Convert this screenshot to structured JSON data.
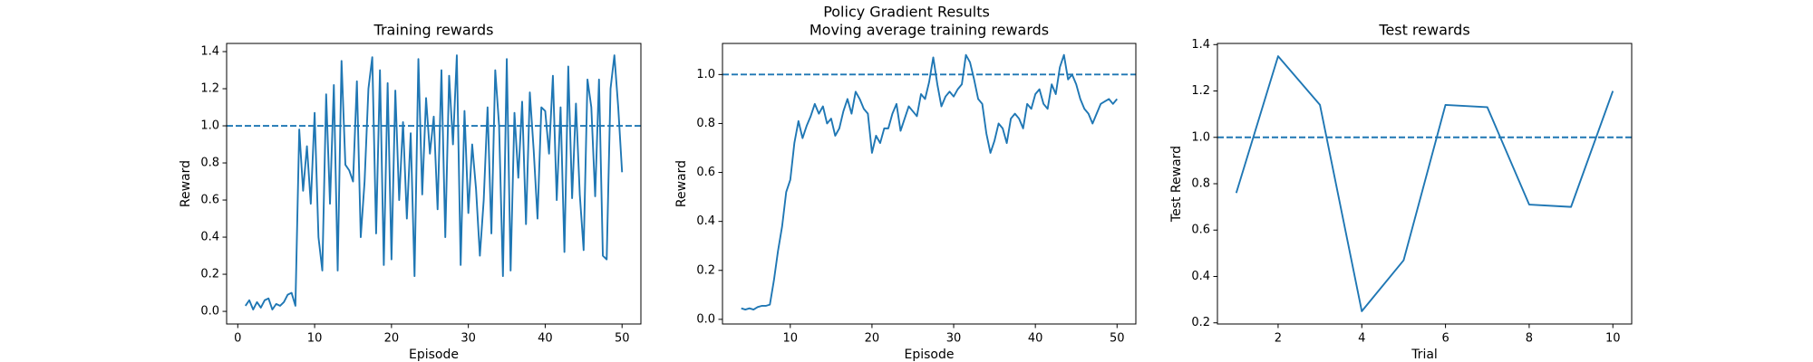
{
  "title": "Policy Gradient Results",
  "chart_data": [
    {
      "type": "line",
      "title": "Training rewards",
      "x_label": "Episode",
      "y_label": "Reward",
      "x": [
        1,
        1.5,
        2,
        2.5,
        3,
        3.5,
        4,
        4.5,
        5,
        5.5,
        6,
        6.5,
        7,
        7.5,
        8,
        8.5,
        9,
        9.5,
        10,
        10.5,
        11,
        11.5,
        12,
        12.5,
        13,
        13.5,
        14,
        14.5,
        15,
        15.5,
        16,
        16.5,
        17,
        17.5,
        18,
        18.5,
        19,
        19.5,
        20,
        20.5,
        21,
        21.5,
        22,
        22.5,
        23,
        23.5,
        24,
        24.5,
        25,
        25.5,
        26,
        26.5,
        27,
        27.5,
        28,
        28.5,
        29,
        29.5,
        30,
        30.5,
        31,
        31.5,
        32,
        32.5,
        33,
        33.5,
        34,
        34.5,
        35,
        35.5,
        36,
        36.5,
        37,
        37.5,
        38,
        38.5,
        39,
        39.5,
        40,
        40.5,
        41,
        41.5,
        42,
        42.5,
        43,
        43.5,
        44,
        44.5,
        45,
        45.5,
        46,
        46.5,
        47,
        47.5,
        48,
        48.5,
        49,
        49.5,
        50
      ],
      "series": [
        {
          "color": "#1f77b4",
          "values": [
            0.03,
            0.06,
            0.01,
            0.05,
            0.02,
            0.06,
            0.07,
            0.01,
            0.04,
            0.03,
            0.05,
            0.09,
            0.1,
            0.03,
            0.98,
            0.65,
            0.89,
            0.58,
            1.07,
            0.4,
            0.22,
            1.17,
            0.58,
            1.22,
            0.22,
            1.35,
            0.79,
            0.76,
            0.7,
            1.24,
            0.4,
            0.7,
            1.2,
            1.37,
            0.42,
            1.3,
            0.25,
            1.23,
            0.28,
            1.19,
            0.6,
            1.02,
            0.5,
            0.96,
            0.19,
            1.36,
            0.63,
            1.15,
            0.85,
            1.05,
            0.55,
            1.3,
            0.4,
            1.27,
            0.9,
            1.38,
            0.25,
            1.08,
            0.53,
            0.9,
            0.66,
            0.3,
            0.6,
            1.1,
            0.42,
            1.3,
            1.0,
            0.19,
            1.36,
            0.22,
            1.07,
            0.72,
            1.13,
            0.47,
            1.18,
            0.87,
            0.5,
            1.1,
            1.08,
            0.85,
            1.27,
            0.6,
            1.1,
            0.32,
            1.32,
            0.61,
            1.12,
            0.63,
            0.33,
            1.25,
            1.1,
            0.62,
            1.25,
            0.3,
            0.28,
            1.2,
            1.38,
            1.1,
            0.75
          ]
        }
      ],
      "hline": 1.0,
      "xlim": [
        -1.45,
        52.45
      ],
      "xticks": [
        0,
        10,
        20,
        30,
        40,
        50
      ],
      "ylim": [
        -0.068,
        1.444
      ],
      "yticks": [
        {
          "value": 0,
          "label": "0.0"
        },
        0.2,
        0.4,
        0.6,
        0.8,
        {
          "value": 1,
          "label": "1.0"
        },
        1.2,
        1.4
      ]
    },
    {
      "type": "line",
      "title": "Moving average training rewards",
      "x_label": "Episode",
      "y_label": "Reward",
      "x": [
        4,
        4.5,
        5,
        5.5,
        6,
        6.5,
        7,
        7.5,
        8,
        8.5,
        9,
        9.5,
        10,
        10.5,
        11,
        11.5,
        12,
        12.5,
        13,
        13.5,
        14,
        14.5,
        15,
        15.5,
        16,
        16.5,
        17,
        17.5,
        18,
        18.5,
        19,
        19.5,
        20,
        20.5,
        21,
        21.5,
        22,
        22.5,
        23,
        23.5,
        24,
        24.5,
        25,
        25.5,
        26,
        26.5,
        27,
        27.5,
        28,
        28.5,
        29,
        29.5,
        30,
        30.5,
        31,
        31.5,
        32,
        32.5,
        33,
        33.5,
        34,
        34.5,
        35,
        35.5,
        36,
        36.5,
        37,
        37.5,
        38,
        38.5,
        39,
        39.5,
        40,
        40.5,
        41,
        41.5,
        42,
        42.5,
        43,
        43.5,
        44,
        44.5,
        45,
        45.5,
        46,
        46.5,
        47,
        47.5,
        48,
        48.5,
        49,
        49.5,
        50
      ],
      "series": [
        {
          "color": "#1f77b4",
          "values": [
            0.045,
            0.04,
            0.045,
            0.04,
            0.05,
            0.055,
            0.055,
            0.06,
            0.16,
            0.28,
            0.38,
            0.52,
            0.57,
            0.72,
            0.81,
            0.74,
            0.79,
            0.83,
            0.88,
            0.84,
            0.87,
            0.8,
            0.82,
            0.75,
            0.78,
            0.85,
            0.9,
            0.84,
            0.93,
            0.9,
            0.86,
            0.84,
            0.68,
            0.75,
            0.72,
            0.78,
            0.78,
            0.84,
            0.88,
            0.77,
            0.82,
            0.87,
            0.85,
            0.83,
            0.92,
            0.9,
            0.97,
            1.07,
            0.96,
            0.87,
            0.91,
            0.93,
            0.91,
            0.94,
            0.96,
            1.08,
            1.05,
            0.98,
            0.9,
            0.88,
            0.76,
            0.68,
            0.73,
            0.8,
            0.78,
            0.72,
            0.82,
            0.84,
            0.82,
            0.78,
            0.88,
            0.86,
            0.92,
            0.94,
            0.88,
            0.86,
            0.96,
            0.92,
            1.03,
            1.08,
            0.98,
            1.0,
            0.96,
            0.9,
            0.86,
            0.84,
            0.8,
            0.84,
            0.88,
            0.89,
            0.9,
            0.88,
            0.9
          ]
        }
      ],
      "hline": 1.0,
      "xlim": [
        1.7,
        52.3
      ],
      "xticks": [
        10,
        20,
        30,
        40,
        50
      ],
      "ylim": [
        -0.019,
        1.127
      ],
      "yticks": [
        {
          "value": 0,
          "label": "0.0"
        },
        0.2,
        0.4,
        0.6,
        0.8,
        {
          "value": 1,
          "label": "1.0"
        }
      ]
    },
    {
      "type": "line",
      "title": "Test rewards",
      "x_label": "Trial",
      "y_label": "Test Reward",
      "x": [
        1,
        2,
        3,
        4,
        5,
        6,
        7,
        8,
        9,
        10
      ],
      "series": [
        {
          "color": "#1f77b4",
          "values": [
            0.76,
            1.35,
            1.14,
            0.25,
            0.47,
            1.14,
            1.13,
            0.71,
            0.7,
            1.2
          ]
        }
      ],
      "hline": 1.0,
      "xlim": [
        0.55,
        10.45
      ],
      "xticks": [
        2,
        4,
        6,
        8,
        10
      ],
      "ylim": [
        0.195,
        1.405
      ],
      "yticks": [
        0.2,
        0.4,
        0.6,
        0.8,
        {
          "value": 1,
          "label": "1.0"
        },
        1.2,
        1.4
      ]
    }
  ]
}
